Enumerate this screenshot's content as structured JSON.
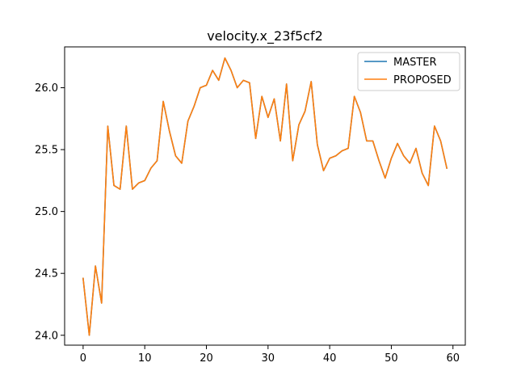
{
  "chart_data": {
    "type": "line",
    "title": "velocity.x_23f5cf2",
    "xlabel": "",
    "ylabel": "",
    "xlim": [
      -3,
      62
    ],
    "ylim": [
      23.92,
      26.33
    ],
    "xticks": [
      0,
      10,
      20,
      30,
      40,
      50,
      60
    ],
    "yticks": [
      24.0,
      24.5,
      25.0,
      25.5,
      26.0
    ],
    "ytick_labels": [
      "24.0",
      "24.5",
      "25.0",
      "25.5",
      "26.0"
    ],
    "legend_position": "top-right",
    "grid": false,
    "x": [
      0,
      1,
      2,
      3,
      4,
      5,
      6,
      7,
      8,
      9,
      10,
      11,
      12,
      13,
      14,
      15,
      16,
      17,
      18,
      19,
      20,
      21,
      22,
      23,
      24,
      25,
      26,
      27,
      28,
      29,
      30,
      31,
      32,
      33,
      34,
      35,
      36,
      37,
      38,
      39,
      40,
      41,
      42,
      43,
      44,
      45,
      46,
      47,
      48,
      49,
      50,
      51,
      52,
      53,
      54,
      55,
      56,
      57,
      58,
      59
    ],
    "series": [
      {
        "name": "MASTER",
        "color": "#1f77b4",
        "values": [
          24.46,
          24.0,
          24.56,
          24.26,
          25.69,
          25.21,
          25.18,
          25.69,
          25.18,
          25.23,
          25.25,
          25.35,
          25.41,
          25.89,
          25.65,
          25.45,
          25.39,
          25.73,
          25.85,
          26.0,
          26.02,
          26.14,
          26.06,
          26.24,
          26.14,
          26.0,
          26.06,
          26.04,
          25.59,
          25.93,
          25.76,
          25.91,
          25.57,
          26.03,
          25.41,
          25.7,
          25.81,
          26.05,
          25.54,
          25.33,
          25.43,
          25.45,
          25.49,
          25.51,
          25.93,
          25.8,
          25.57,
          25.57,
          25.41,
          25.27,
          25.43,
          25.55,
          25.45,
          25.39,
          25.51,
          25.31,
          25.21,
          25.69,
          25.57,
          25.35
        ]
      },
      {
        "name": "PROPOSED",
        "color": "#ff7f0e",
        "values": [
          24.46,
          24.0,
          24.56,
          24.26,
          25.69,
          25.21,
          25.18,
          25.69,
          25.18,
          25.23,
          25.25,
          25.35,
          25.41,
          25.89,
          25.65,
          25.45,
          25.39,
          25.73,
          25.85,
          26.0,
          26.02,
          26.14,
          26.06,
          26.24,
          26.14,
          26.0,
          26.06,
          26.04,
          25.59,
          25.93,
          25.76,
          25.91,
          25.57,
          26.03,
          25.41,
          25.7,
          25.81,
          26.05,
          25.54,
          25.33,
          25.43,
          25.45,
          25.49,
          25.51,
          25.93,
          25.8,
          25.57,
          25.57,
          25.41,
          25.27,
          25.43,
          25.55,
          25.45,
          25.39,
          25.51,
          25.31,
          25.21,
          25.69,
          25.57,
          25.35
        ]
      }
    ]
  }
}
